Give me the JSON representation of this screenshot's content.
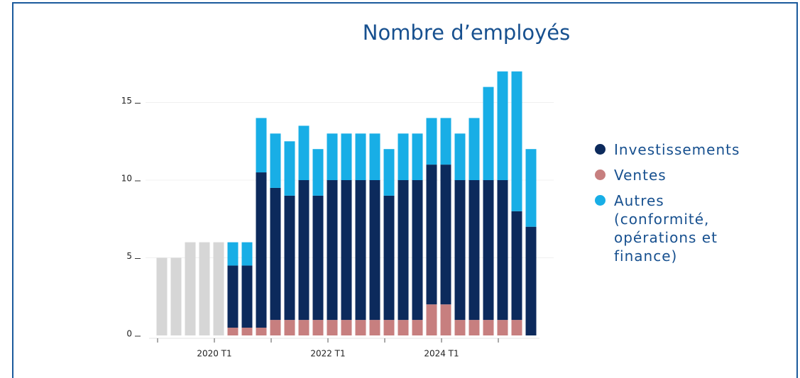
{
  "chart_data": {
    "type": "stacked_bar",
    "title": "Nombre d’employés",
    "categories": [
      null,
      null,
      null,
      null,
      "2020 T1",
      null,
      null,
      null,
      null,
      null,
      null,
      null,
      "2022 T1",
      null,
      null,
      null,
      null,
      null,
      null,
      null,
      "2024 T1",
      null,
      null,
      null,
      null,
      null,
      null
    ],
    "series": [
      {
        "name": "Ventes",
        "color": "#c77f7f",
        "values": [
          null,
          null,
          null,
          null,
          null,
          0.5,
          0.5,
          0.5,
          1,
          1,
          1,
          1,
          1,
          1,
          1,
          1,
          1,
          1,
          1,
          2,
          2,
          1,
          1,
          1,
          1,
          1,
          0
        ]
      },
      {
        "name": "Investissements",
        "color": "#0c2a5c",
        "values": [
          null,
          null,
          null,
          null,
          null,
          4,
          4,
          10,
          8.5,
          8,
          9,
          8,
          9,
          9,
          9,
          9,
          8,
          9,
          9,
          9,
          9,
          9,
          9,
          9,
          9,
          7,
          7
        ]
      },
      {
        "name": "Autres (conformité, opérations et finance)",
        "color": "#18aee6",
        "values": [
          null,
          null,
          null,
          null,
          null,
          1.5,
          1.5,
          3.5,
          3.5,
          3.5,
          3.5,
          3,
          3,
          3,
          3,
          3,
          3,
          3,
          3,
          3,
          3,
          3,
          4,
          6,
          7,
          9,
          5
        ]
      }
    ],
    "unassigned": {
      "color": "#d6d6d6",
      "values": [
        5,
        5,
        6,
        6,
        6,
        null,
        null,
        null,
        null,
        null,
        null,
        null,
        null,
        null,
        null,
        null,
        null,
        null,
        null,
        null,
        null,
        null,
        null,
        null,
        null,
        null,
        null
      ]
    },
    "legend_order": [
      1,
      0,
      2
    ],
    "ylim": [
      0,
      17.5
    ],
    "yticks": [
      0,
      5,
      10,
      15
    ],
    "grid": true
  }
}
